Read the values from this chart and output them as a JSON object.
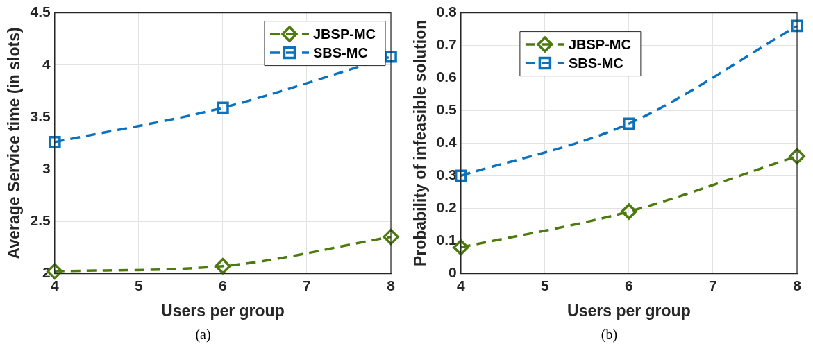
{
  "chart_data": [
    {
      "type": "line",
      "xlabel": "Users per group",
      "ylabel": "Average Service time (in slots)",
      "x": [
        4,
        6,
        8
      ],
      "xlim": [
        4,
        8
      ],
      "xticks": [
        4,
        5,
        6,
        7,
        8
      ],
      "ylim": [
        2,
        4.5
      ],
      "yticks": [
        2,
        2.5,
        3,
        3.5,
        4,
        4.5
      ],
      "grid": true,
      "legend": "top right",
      "line_style": "dashed",
      "annotations": [
        "(a)"
      ],
      "series": [
        {
          "name": "JBSP-MC",
          "color": "#4d7a0f",
          "marker": "diamond",
          "values": [
            2.02,
            2.07,
            2.35
          ]
        },
        {
          "name": "SBS-MC",
          "color": "#0a72bd",
          "marker": "square",
          "values": [
            3.26,
            3.59,
            4.08
          ]
        }
      ]
    },
    {
      "type": "line",
      "xlabel": "Users per group",
      "ylabel": "Probability of infeasible solution",
      "x": [
        4,
        6,
        8
      ],
      "xlim": [
        4,
        8
      ],
      "xticks": [
        4,
        5,
        6,
        7,
        8
      ],
      "ylim": [
        0,
        0.8
      ],
      "yticks": [
        0,
        0.1,
        0.2,
        0.3,
        0.4,
        0.5,
        0.6,
        0.7,
        0.8
      ],
      "grid": true,
      "legend": "top",
      "line_style": "dashed",
      "annotations": [
        "(b)"
      ],
      "series": [
        {
          "name": "JBSP-MC",
          "color": "#4d7a0f",
          "marker": "diamond",
          "values": [
            0.08,
            0.19,
            0.36
          ]
        },
        {
          "name": "SBS-MC",
          "color": "#0a72bd",
          "marker": "square",
          "values": [
            0.3,
            0.46,
            0.76
          ]
        }
      ]
    }
  ]
}
